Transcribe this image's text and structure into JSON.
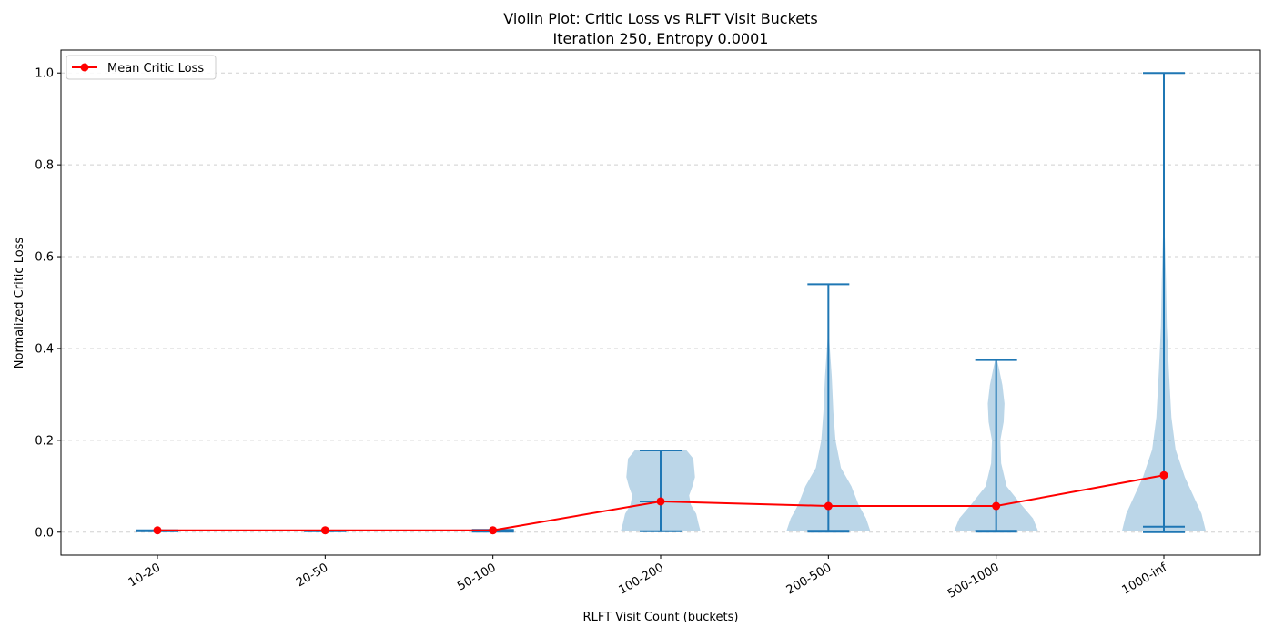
{
  "chart_data": {
    "type": "violin",
    "title": "Violin Plot: Critic Loss vs RLFT Visit Buckets",
    "subtitle": "Iteration 250, Entropy 0.0001",
    "xlabel": "RLFT Visit Count (buckets)",
    "ylabel": "Normalized Critic Loss",
    "ylim": [
      -0.05,
      1.05
    ],
    "yticks": [
      0.0,
      0.2,
      0.4,
      0.6,
      0.8,
      1.0
    ],
    "ytick_labels": [
      "0.0",
      "0.2",
      "0.4",
      "0.6",
      "0.8",
      "1.0"
    ],
    "grid": "y-dashed",
    "legend_position": "top-left",
    "colors": {
      "violin": "#1f77b4",
      "mean_line": "#ff0000"
    },
    "categories": [
      "10-20",
      "20-50",
      "50-100",
      "100-200",
      "200-500",
      "500-1000",
      "1000-inf"
    ],
    "violins": [
      {
        "min": 0.002,
        "max": 0.004,
        "median": 0.003,
        "density": [
          [
            0.002,
            0.2
          ],
          [
            0.003,
            0.2
          ],
          [
            0.004,
            0.2
          ]
        ]
      },
      {
        "min": 0.002,
        "max": 0.003,
        "median": 0.0025,
        "density": [
          [
            0.002,
            0.2
          ],
          [
            0.003,
            0.2
          ]
        ]
      },
      {
        "min": 0.001,
        "max": 0.005,
        "median": 0.003,
        "density": [
          [
            0.001,
            0.5
          ],
          [
            0.003,
            0.5
          ],
          [
            0.005,
            0.5
          ]
        ]
      },
      {
        "min": 0.002,
        "max": 0.178,
        "median": 0.067,
        "density": [
          [
            0.0,
            0.0
          ],
          [
            0.003,
            0.95
          ],
          [
            0.02,
            0.9
          ],
          [
            0.04,
            0.85
          ],
          [
            0.06,
            0.72
          ],
          [
            0.08,
            0.68
          ],
          [
            0.1,
            0.76
          ],
          [
            0.12,
            0.82
          ],
          [
            0.14,
            0.8
          ],
          [
            0.16,
            0.78
          ],
          [
            0.178,
            0.62
          ]
        ]
      },
      {
        "min": 0.001,
        "max": 0.54,
        "median": 0.003,
        "density": [
          [
            0.0,
            0.0
          ],
          [
            0.003,
            1.0
          ],
          [
            0.03,
            0.9
          ],
          [
            0.06,
            0.72
          ],
          [
            0.1,
            0.55
          ],
          [
            0.14,
            0.3
          ],
          [
            0.2,
            0.17
          ],
          [
            0.26,
            0.12
          ],
          [
            0.34,
            0.08
          ],
          [
            0.42,
            0.02
          ],
          [
            0.54,
            0.01
          ]
        ]
      },
      {
        "min": 0.001,
        "max": 0.375,
        "median": 0.003,
        "density": [
          [
            0.0,
            0.0
          ],
          [
            0.003,
            1.0
          ],
          [
            0.03,
            0.88
          ],
          [
            0.06,
            0.6
          ],
          [
            0.1,
            0.25
          ],
          [
            0.15,
            0.12
          ],
          [
            0.2,
            0.1
          ],
          [
            0.24,
            0.18
          ],
          [
            0.28,
            0.2
          ],
          [
            0.32,
            0.15
          ],
          [
            0.36,
            0.06
          ],
          [
            0.375,
            0.02
          ]
        ]
      },
      {
        "min": 0.0,
        "max": 1.0,
        "median": 0.012,
        "density": [
          [
            0.0,
            0.0
          ],
          [
            0.003,
            1.0
          ],
          [
            0.04,
            0.9
          ],
          [
            0.08,
            0.7
          ],
          [
            0.12,
            0.5
          ],
          [
            0.18,
            0.28
          ],
          [
            0.25,
            0.18
          ],
          [
            0.35,
            0.12
          ],
          [
            0.45,
            0.07
          ],
          [
            0.55,
            0.05
          ],
          [
            0.65,
            0.02
          ],
          [
            0.8,
            0.01
          ],
          [
            1.0,
            0.005
          ]
        ]
      }
    ],
    "series": [
      {
        "name": "Mean Critic Loss",
        "values": [
          0.004,
          0.004,
          0.004,
          0.067,
          0.057,
          0.057,
          0.124
        ]
      }
    ]
  }
}
